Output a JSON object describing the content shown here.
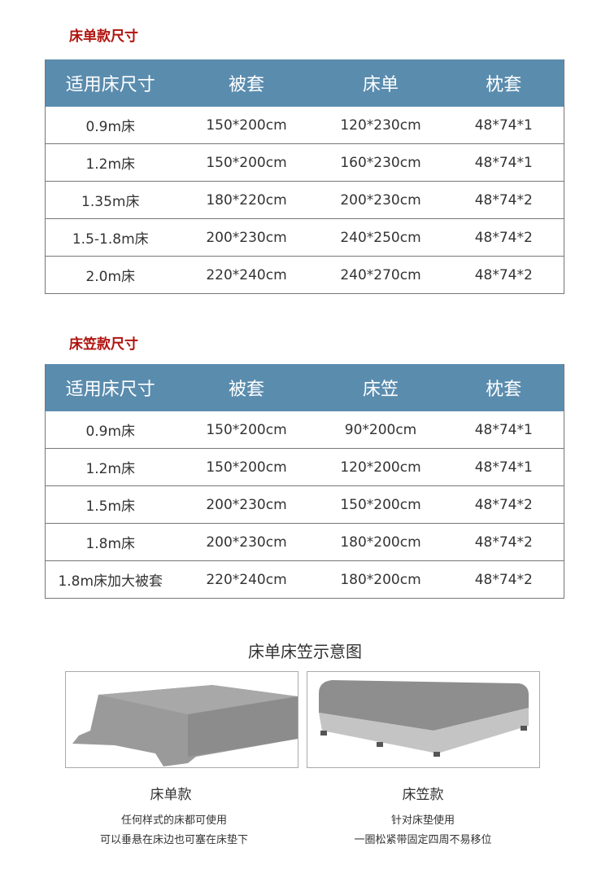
{
  "sheet_section": {
    "title": "床单款尺寸",
    "headers": [
      "适用床尺寸",
      "被套",
      "床单",
      "枕套"
    ],
    "rows": [
      [
        "0.9m床",
        "150*200cm",
        "120*230cm",
        "48*74*1"
      ],
      [
        "1.2m床",
        "150*200cm",
        "160*230cm",
        "48*74*1"
      ],
      [
        "1.35m床",
        "180*220cm",
        "200*230cm",
        "48*74*2"
      ],
      [
        "1.5-1.8m床",
        "200*230cm",
        "240*250cm",
        "48*74*2"
      ],
      [
        "2.0m床",
        "220*240cm",
        "240*270cm",
        "48*74*2"
      ]
    ]
  },
  "fitted_section": {
    "title": "床笠款尺寸",
    "headers": [
      "适用床尺寸",
      "被套",
      "床笠",
      "枕套"
    ],
    "rows": [
      [
        "0.9m床",
        "150*200cm",
        "90*200cm",
        "48*74*1"
      ],
      [
        "1.2m床",
        "150*200cm",
        "120*200cm",
        "48*74*1"
      ],
      [
        "1.5m床",
        "200*230cm",
        "150*200cm",
        "48*74*2"
      ],
      [
        "1.8m床",
        "200*230cm",
        "180*200cm",
        "48*74*2"
      ],
      [
        "1.8m床加大被套",
        "220*240cm",
        "180*200cm",
        "48*74*2"
      ]
    ]
  },
  "diagram": {
    "title": "床单床笠示意图",
    "items": [
      {
        "label": "床单款",
        "desc1": "任何样式的床都可使用",
        "desc2": "可以垂悬在床边也可塞在床垫下"
      },
      {
        "label": "床笠款",
        "desc1": "针对床垫使用",
        "desc2": "一圈松紧带固定四周不易移位"
      }
    ]
  },
  "colors": {
    "header_bg": "#5a8cae",
    "section_title": "#b0140f"
  }
}
